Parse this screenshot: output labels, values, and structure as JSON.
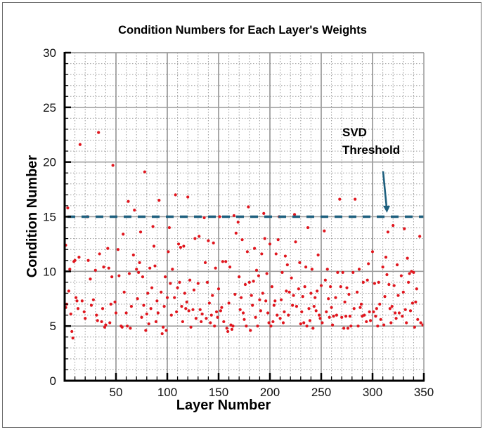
{
  "chart_data": {
    "type": "scatter",
    "title": "Condition Numbers for Each Layer's Weights",
    "xlabel": "Layer Number",
    "ylabel": "Condition Number",
    "xlim": [
      0,
      350
    ],
    "ylim": [
      0,
      30
    ],
    "xticks": [
      50,
      100,
      150,
      200,
      250,
      300,
      350
    ],
    "yticks": [
      0,
      5,
      10,
      15,
      20,
      25,
      30
    ],
    "grid": {
      "major": true,
      "minor": true,
      "minor_style": "dotted"
    },
    "legend": null,
    "marker_color": "#e0161e",
    "threshold": {
      "value": 15,
      "label": "SVD Threshold",
      "color": "#1d5f7e",
      "style": "dashed"
    },
    "annotations": [
      {
        "text": "SVD Threshold",
        "x": 315,
        "y": 20.5,
        "arrow_to": [
          313,
          15.3
        ]
      }
    ],
    "series": [
      {
        "name": "Condition Number",
        "points": [
          [
            1,
            6.7
          ],
          [
            1,
            12.4
          ],
          [
            2,
            7.0
          ],
          [
            3,
            15.8
          ],
          [
            4,
            8.2
          ],
          [
            5,
            10.2
          ],
          [
            6,
            6.1
          ],
          [
            7,
            4.5
          ],
          [
            8,
            3.9
          ],
          [
            9,
            10.9
          ],
          [
            10,
            11.0
          ],
          [
            11,
            7.6
          ],
          [
            12,
            7.3
          ],
          [
            13,
            6.6
          ],
          [
            14,
            11.3
          ],
          [
            15,
            21.6
          ],
          [
            17,
            7.3
          ],
          [
            19,
            6.3
          ],
          [
            20,
            5.7
          ],
          [
            22,
            15.0
          ],
          [
            23,
            11.0
          ],
          [
            25,
            9.3
          ],
          [
            26,
            6.9
          ],
          [
            28,
            7.4
          ],
          [
            30,
            10.1
          ],
          [
            31,
            6.0
          ],
          [
            32,
            5.5
          ],
          [
            33,
            22.7
          ],
          [
            34,
            11.6
          ],
          [
            36,
            5.4
          ],
          [
            37,
            6.6
          ],
          [
            38,
            10.4
          ],
          [
            39,
            4.9
          ],
          [
            40,
            5.1
          ],
          [
            42,
            12.1
          ],
          [
            43,
            10.3
          ],
          [
            44,
            5.3
          ],
          [
            45,
            7.0
          ],
          [
            46,
            9.5
          ],
          [
            47,
            19.7
          ],
          [
            49,
            7.2
          ],
          [
            50,
            6.2
          ],
          [
            52,
            12.0
          ],
          [
            53,
            9.6
          ],
          [
            55,
            5.0
          ],
          [
            56,
            4.9
          ],
          [
            57,
            13.4
          ],
          [
            58,
            8.1
          ],
          [
            60,
            6.2
          ],
          [
            61,
            5.0
          ],
          [
            62,
            16.4
          ],
          [
            63,
            9.8
          ],
          [
            64,
            4.8
          ],
          [
            65,
            6.8
          ],
          [
            67,
            11.5
          ],
          [
            68,
            15.6
          ],
          [
            70,
            10.2
          ],
          [
            71,
            7.5
          ],
          [
            72,
            9.9
          ],
          [
            73,
            10.8
          ],
          [
            74,
            13.6
          ],
          [
            75,
            5.8
          ],
          [
            76,
            9.5
          ],
          [
            77,
            6.9
          ],
          [
            78,
            19.1
          ],
          [
            79,
            4.6
          ],
          [
            80,
            6.1
          ],
          [
            81,
            8.0
          ],
          [
            82,
            5.2
          ],
          [
            83,
            10.3
          ],
          [
            84,
            6.6
          ],
          [
            85,
            8.5
          ],
          [
            86,
            14.1
          ],
          [
            87,
            12.3
          ],
          [
            88,
            10.5
          ],
          [
            89,
            5.4
          ],
          [
            90,
            7.3
          ],
          [
            91,
            6.2
          ],
          [
            92,
            16.5
          ],
          [
            94,
            8.1
          ],
          [
            95,
            4.3
          ],
          [
            96,
            4.9
          ],
          [
            97,
            6.8
          ],
          [
            98,
            9.5
          ],
          [
            99,
            4.6
          ],
          [
            100,
            7.6
          ],
          [
            101,
            11.8
          ],
          [
            102,
            14.0
          ],
          [
            103,
            8.9
          ],
          [
            104,
            6.0
          ],
          [
            105,
            10.2
          ],
          [
            107,
            7.6
          ],
          [
            108,
            17.0
          ],
          [
            109,
            6.3
          ],
          [
            110,
            8.5
          ],
          [
            111,
            12.5
          ],
          [
            112,
            9.0
          ],
          [
            113,
            12.2
          ],
          [
            114,
            6.8
          ],
          [
            115,
            5.4
          ],
          [
            116,
            12.3
          ],
          [
            117,
            8.0
          ],
          [
            118,
            6.6
          ],
          [
            119,
            7.2
          ],
          [
            120,
            16.8
          ],
          [
            121,
            6.4
          ],
          [
            122,
            9.2
          ],
          [
            123,
            4.9
          ],
          [
            125,
            6.5
          ],
          [
            126,
            8.3
          ],
          [
            127,
            13.0
          ],
          [
            128,
            5.7
          ],
          [
            130,
            8.9
          ],
          [
            131,
            13.2
          ],
          [
            132,
            6.5
          ],
          [
            133,
            5.4
          ],
          [
            134,
            6.1
          ],
          [
            136,
            14.9
          ],
          [
            137,
            10.8
          ],
          [
            138,
            5.7
          ],
          [
            139,
            9.0
          ],
          [
            140,
            12.8
          ],
          [
            141,
            7.1
          ],
          [
            142,
            5.3
          ],
          [
            143,
            6.0
          ],
          [
            144,
            7.8
          ],
          [
            145,
            12.6
          ],
          [
            146,
            5.0
          ],
          [
            147,
            10.3
          ],
          [
            148,
            6.3
          ],
          [
            149,
            5.8
          ],
          [
            150,
            8.4
          ],
          [
            151,
            15.0
          ],
          [
            152,
            6.4
          ],
          [
            153,
            6.7
          ],
          [
            154,
            10.9
          ],
          [
            155,
            5.4
          ],
          [
            157,
            10.9
          ],
          [
            158,
            4.8
          ],
          [
            159,
            4.5
          ],
          [
            160,
            7.1
          ],
          [
            161,
            10.4
          ],
          [
            162,
            5.1
          ],
          [
            163,
            4.7
          ],
          [
            164,
            5.0
          ],
          [
            165,
            15.1
          ],
          [
            166,
            7.9
          ],
          [
            167,
            13.5
          ],
          [
            169,
            14.5
          ],
          [
            170,
            9.5
          ],
          [
            171,
            6.5
          ],
          [
            172,
            7.6
          ],
          [
            173,
            12.9
          ],
          [
            174,
            6.2
          ],
          [
            175,
            5.6
          ],
          [
            176,
            8.8
          ],
          [
            177,
            5.0
          ],
          [
            178,
            11.8
          ],
          [
            179,
            15.9
          ],
          [
            180,
            9.0
          ],
          [
            181,
            4.6
          ],
          [
            182,
            7.8
          ],
          [
            183,
            6.9
          ],
          [
            184,
            9.1
          ],
          [
            185,
            12.1
          ],
          [
            186,
            5.8
          ],
          [
            187,
            10.1
          ],
          [
            188,
            5.0
          ],
          [
            189,
            9.6
          ],
          [
            190,
            7.4
          ],
          [
            191,
            6.4
          ],
          [
            192,
            11.6
          ],
          [
            193,
            8.0
          ],
          [
            194,
            15.3
          ],
          [
            195,
            13.0
          ],
          [
            196,
            7.3
          ],
          [
            197,
            9.8
          ],
          [
            198,
            6.2
          ],
          [
            199,
            5.3
          ],
          [
            200,
            12.5
          ],
          [
            201,
            5.0
          ],
          [
            202,
            8.6
          ],
          [
            203,
            5.4
          ],
          [
            204,
            6.9
          ],
          [
            205,
            7.3
          ],
          [
            206,
            11.6
          ],
          [
            207,
            6.0
          ],
          [
            208,
            12.9
          ],
          [
            209,
            15.0
          ],
          [
            210,
            5.7
          ],
          [
            211,
            7.4
          ],
          [
            212,
            9.9
          ],
          [
            213,
            5.3
          ],
          [
            214,
            6.3
          ],
          [
            215,
            11.4
          ],
          [
            216,
            8.2
          ],
          [
            217,
            10.6
          ],
          [
            218,
            6.0
          ],
          [
            219,
            8.1
          ],
          [
            221,
            9.4
          ],
          [
            222,
            6.9
          ],
          [
            223,
            7.8
          ],
          [
            224,
            15.2
          ],
          [
            225,
            12.7
          ],
          [
            226,
            6.8
          ],
          [
            228,
            8.4
          ],
          [
            229,
            10.8
          ],
          [
            230,
            5.2
          ],
          [
            231,
            6.3
          ],
          [
            232,
            7.7
          ],
          [
            233,
            5.3
          ],
          [
            234,
            8.6
          ],
          [
            235,
            10.4
          ],
          [
            236,
            5.0
          ],
          [
            237,
            14.0
          ],
          [
            238,
            6.6
          ],
          [
            239,
            5.5
          ],
          [
            240,
            8.0
          ],
          [
            241,
            10.2
          ],
          [
            242,
            4.8
          ],
          [
            243,
            6.8
          ],
          [
            244,
            7.6
          ],
          [
            245,
            6.4
          ],
          [
            246,
            8.2
          ],
          [
            247,
            11.5
          ],
          [
            248,
            6.0
          ],
          [
            249,
            5.7
          ],
          [
            250,
            8.7
          ],
          [
            251,
            5.3
          ],
          [
            253,
            13.7
          ],
          [
            254,
            9.2
          ],
          [
            255,
            6.3
          ],
          [
            256,
            10.2
          ],
          [
            257,
            7.5
          ],
          [
            258,
            5.8
          ],
          [
            259,
            8.6
          ],
          [
            260,
            6.7
          ],
          [
            261,
            5.1
          ],
          [
            262,
            5.9
          ],
          [
            264,
            7.6
          ],
          [
            265,
            6.0
          ],
          [
            266,
            9.9
          ],
          [
            268,
            16.6
          ],
          [
            269,
            8.6
          ],
          [
            270,
            5.8
          ],
          [
            271,
            9.9
          ],
          [
            272,
            4.8
          ],
          [
            273,
            7.2
          ],
          [
            274,
            5.9
          ],
          [
            275,
            8.5
          ],
          [
            276,
            4.8
          ],
          [
            277,
            7.9
          ],
          [
            278,
            5.9
          ],
          [
            279,
            5.0
          ],
          [
            281,
            9.9
          ],
          [
            282,
            6.6
          ],
          [
            283,
            16.6
          ],
          [
            285,
            8.1
          ],
          [
            286,
            5.0
          ],
          [
            287,
            10.2
          ],
          [
            288,
            6.7
          ],
          [
            289,
            7.0
          ],
          [
            290,
            5.9
          ],
          [
            291,
            9.0
          ],
          [
            292,
            6.0
          ],
          [
            294,
            5.4
          ],
          [
            295,
            9.2
          ],
          [
            296,
            10.7
          ],
          [
            297,
            6.3
          ],
          [
            298,
            5.5
          ],
          [
            300,
            11.8
          ],
          [
            301,
            6.3
          ],
          [
            302,
            8.9
          ],
          [
            303,
            5.9
          ],
          [
            304,
            6.6
          ],
          [
            305,
            5.0
          ],
          [
            306,
            9.0
          ],
          [
            307,
            7.0
          ],
          [
            308,
            5.6
          ],
          [
            310,
            10.4
          ],
          [
            311,
            5.1
          ],
          [
            312,
            7.7
          ],
          [
            313,
            11.3
          ],
          [
            314,
            9.7
          ],
          [
            315,
            13.6
          ],
          [
            316,
            8.8
          ],
          [
            317,
            6.6
          ],
          [
            318,
            5.3
          ],
          [
            319,
            6.8
          ],
          [
            320,
            14.2
          ],
          [
            321,
            8.7
          ],
          [
            322,
            6.2
          ],
          [
            323,
            5.7
          ],
          [
            324,
            10.6
          ],
          [
            325,
            7.8
          ],
          [
            326,
            6.2
          ],
          [
            328,
            9.6
          ],
          [
            329,
            5.9
          ],
          [
            330,
            8.1
          ],
          [
            331,
            13.9
          ],
          [
            332,
            6.5
          ],
          [
            333,
            5.3
          ],
          [
            334,
            11.2
          ],
          [
            335,
            9.0
          ],
          [
            336,
            9.8
          ],
          [
            337,
            6.4
          ],
          [
            338,
            10.0
          ],
          [
            339,
            7.1
          ],
          [
            340,
            9.9
          ],
          [
            341,
            4.9
          ],
          [
            342,
            7.2
          ],
          [
            343,
            8.4
          ],
          [
            344,
            5.6
          ],
          [
            346,
            13.2
          ],
          [
            347,
            5.3
          ],
          [
            349,
            5.1
          ]
        ]
      }
    ]
  }
}
